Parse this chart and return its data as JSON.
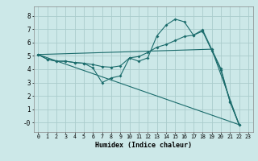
{
  "xlabel": "Humidex (Indice chaleur)",
  "bg_color": "#cce8e8",
  "grid_color": "#aacccc",
  "line_color": "#1a6b6b",
  "xlim": [
    -0.5,
    23.5
  ],
  "ylim": [
    -0.7,
    8.7
  ],
  "xticks": [
    0,
    1,
    2,
    3,
    4,
    5,
    6,
    7,
    8,
    9,
    10,
    11,
    12,
    13,
    14,
    15,
    16,
    17,
    18,
    19,
    20,
    21,
    22,
    23
  ],
  "yticks": [
    0,
    1,
    2,
    3,
    4,
    5,
    6,
    7,
    8
  ],
  "line1_x": [
    0,
    1,
    2,
    3,
    4,
    5,
    6,
    7,
    8,
    9,
    10,
    11,
    12,
    13,
    14,
    15,
    16,
    17,
    18,
    19,
    20,
    21,
    22
  ],
  "line1_y": [
    5.1,
    4.75,
    4.6,
    4.6,
    4.5,
    4.45,
    4.1,
    3.0,
    3.35,
    3.5,
    4.85,
    4.6,
    4.85,
    6.5,
    7.3,
    7.75,
    7.55,
    6.55,
    6.95,
    5.5,
    4.05,
    1.6,
    -0.15
  ],
  "line2_x": [
    0,
    1,
    2,
    3,
    4,
    5,
    6,
    7,
    8,
    9,
    10,
    11,
    12,
    13,
    14,
    15,
    16,
    17,
    18,
    19,
    20,
    21,
    22
  ],
  "line2_y": [
    5.1,
    4.75,
    4.6,
    4.6,
    4.5,
    4.45,
    4.35,
    4.2,
    4.15,
    4.25,
    4.85,
    4.95,
    5.25,
    5.65,
    5.85,
    6.15,
    6.45,
    6.55,
    6.85,
    5.4,
    3.95,
    1.55,
    -0.15
  ],
  "line3_x": [
    0,
    22
  ],
  "line3_y": [
    5.1,
    -0.15
  ],
  "line4_x": [
    0,
    19,
    22
  ],
  "line4_y": [
    5.1,
    5.5,
    -0.15
  ]
}
